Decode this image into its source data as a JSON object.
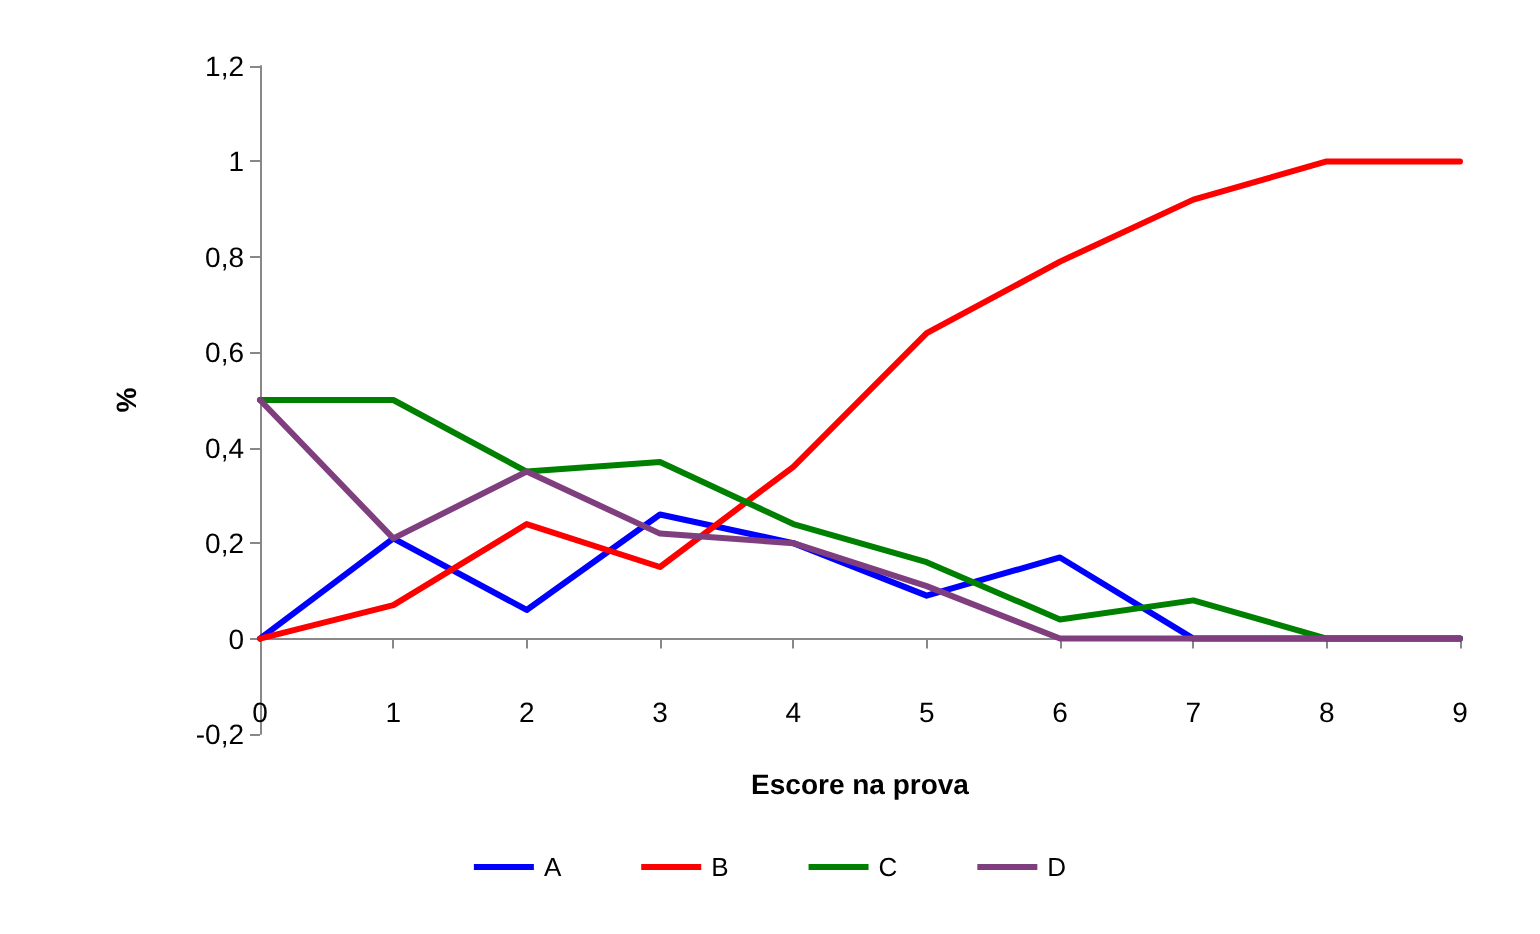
{
  "chart_data": {
    "type": "line",
    "xlabel": "Escore na prova",
    "ylabel": "%",
    "categories": [
      "0",
      "1",
      "2",
      "3",
      "4",
      "5",
      "6",
      "7",
      "8",
      "9"
    ],
    "series": [
      {
        "name": "A",
        "color": "#0000ff",
        "values": [
          0,
          0.21,
          0.06,
          0.26,
          0.2,
          0.09,
          0.17,
          0,
          0,
          0
        ]
      },
      {
        "name": "B",
        "color": "#ff0000",
        "values": [
          0,
          0.07,
          0.24,
          0.15,
          0.36,
          0.64,
          0.79,
          0.92,
          1,
          1
        ]
      },
      {
        "name": "C",
        "color": "#008000",
        "values": [
          0.5,
          0.5,
          0.35,
          0.37,
          0.24,
          0.16,
          0.04,
          0.08,
          0,
          0
        ]
      },
      {
        "name": "D",
        "color": "#7f3f7f",
        "values": [
          0.5,
          0.21,
          0.35,
          0.22,
          0.2,
          0.11,
          0,
          0,
          0,
          0
        ]
      }
    ],
    "ylim": [
      -0.2,
      1.2
    ],
    "yticks": [
      {
        "value": -0.2,
        "label": "-0,2"
      },
      {
        "value": 0,
        "label": "0"
      },
      {
        "value": 0.2,
        "label": "0,2"
      },
      {
        "value": 0.4,
        "label": "0,4"
      },
      {
        "value": 0.6,
        "label": "0,6"
      },
      {
        "value": 0.8,
        "label": "0,8"
      },
      {
        "value": 1,
        "label": "1"
      },
      {
        "value": 1.2,
        "label": "1,2"
      }
    ],
    "grid": false,
    "legend": "bottom",
    "marker": "none",
    "line_style": "solid"
  }
}
